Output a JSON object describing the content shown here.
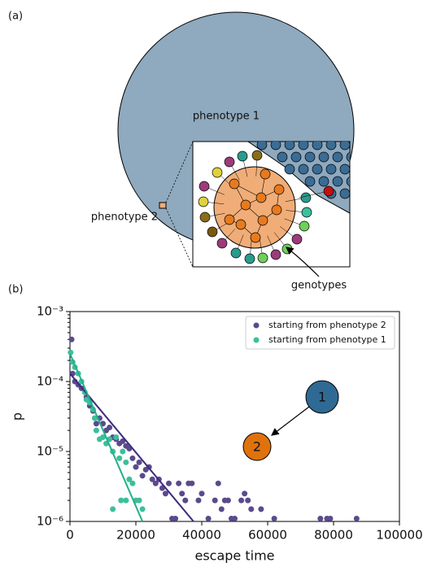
{
  "panel_labels": [
    "(a)",
    "(b)"
  ],
  "diagram": {
    "phenotype_1": "phenotype 1",
    "phenotype_2": "phenotype 2",
    "genotypes": "genotypes"
  },
  "chart_data": {
    "type": "scatter",
    "x_label": "escape time",
    "y_label": "p",
    "xlim": [
      0,
      100000
    ],
    "xticks": [
      0,
      20000,
      40000,
      60000,
      80000,
      100000
    ],
    "ylim": [
      1e-06,
      0.001
    ],
    "y_scale": "log",
    "yticks": [
      {
        "value": 0.001,
        "label": "10⁻³"
      },
      {
        "value": 0.0001,
        "label": "10⁻⁴"
      },
      {
        "value": 1e-05,
        "label": "10⁻⁵"
      },
      {
        "value": 1e-06,
        "label": "10⁻⁶"
      }
    ],
    "legend": "upper right",
    "series": [
      {
        "name": "starting from phenotype 2",
        "color": "#5b4a8c",
        "x": [
          500,
          800,
          1500,
          2500,
          3500,
          5000,
          6000,
          7000,
          8000,
          9000,
          10000,
          11000,
          12000,
          13000,
          14000,
          15000,
          16000,
          17000,
          18000,
          19000,
          20000,
          21000,
          22000,
          23000,
          24000,
          25000,
          26000,
          27000,
          28000,
          29000,
          30000,
          31000,
          32000,
          33000,
          34000,
          35000,
          36000,
          37000,
          39000,
          40000,
          42000,
          44000,
          45000,
          46000,
          47000,
          48000,
          49000,
          50000,
          52000,
          53000,
          54000,
          55000,
          58000,
          62000,
          76000,
          78000,
          79000,
          87000
        ],
        "values": [
          0.0004,
          0.00013,
          0.0001,
          9e-05,
          8e-05,
          6e-05,
          4.5e-05,
          3.8e-05,
          2.5e-05,
          3e-05,
          2.5e-05,
          2e-05,
          2.2e-05,
          1.6e-05,
          1.5e-05,
          1.3e-05,
          1.4e-05,
          1.2e-05,
          1.1e-05,
          8e-06,
          6e-06,
          7e-06,
          4.5e-06,
          5.5e-06,
          6e-06,
          4e-06,
          3.5e-06,
          4e-06,
          3e-06,
          2.5e-06,
          3.5e-06,
          1.1e-06,
          1.1e-06,
          3.5e-06,
          2.5e-06,
          2e-06,
          3.5e-06,
          3.5e-06,
          2e-06,
          2.5e-06,
          1.1e-06,
          2e-06,
          3.5e-06,
          1.5e-06,
          2e-06,
          2e-06,
          1.1e-06,
          1.1e-06,
          2e-06,
          2.5e-06,
          2e-06,
          1.5e-06,
          1.5e-06,
          1.1e-06,
          1.1e-06,
          1.1e-06,
          1.1e-06,
          1.1e-06
        ]
      },
      {
        "name": "starting from phenotype 1",
        "color": "#3cbf9b",
        "x": [
          200,
          800,
          1500,
          2500,
          3500,
          4500,
          5000,
          6000,
          7000,
          7500,
          8000,
          9000,
          10000,
          11000,
          12000,
          13000,
          14000,
          15000,
          16000,
          17000,
          18000,
          19000,
          20000,
          21000,
          22000,
          15500,
          13000,
          17000
        ],
        "values": [
          0.00026,
          0.00019,
          0.00016,
          0.00013,
          0.0001,
          7e-05,
          5.5e-05,
          5e-05,
          4e-05,
          3e-05,
          2e-05,
          1.5e-05,
          1.6e-05,
          1.3e-05,
          1.5e-05,
          1e-05,
          1.6e-05,
          8e-06,
          1e-05,
          7e-06,
          4e-06,
          3.5e-06,
          2e-06,
          2e-06,
          1.5e-06,
          2e-06,
          1.5e-06,
          2e-06
        ]
      }
    ],
    "fit_lines": [
      {
        "color": "#3d2a7c",
        "x": [
          0,
          37500
        ],
        "y": [
          0.00013,
          1e-06
        ]
      },
      {
        "color": "#22b08a",
        "x": [
          0,
          22000
        ],
        "y": [
          0.00025,
          1e-06
        ]
      }
    ],
    "inset_nodes": [
      {
        "label": "1",
        "color": "#2e6a94"
      },
      {
        "label": "2",
        "color": "#e0720c"
      }
    ]
  }
}
